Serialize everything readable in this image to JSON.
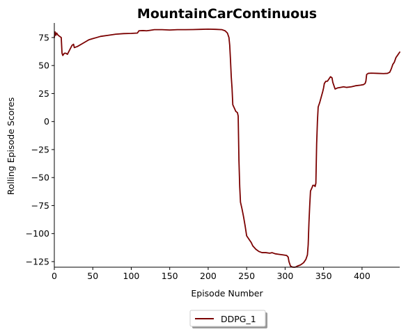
{
  "chart_data": {
    "type": "line",
    "title": "MountainCarContinuous",
    "xlabel": "Episode Number",
    "ylabel": "Rolling Episode Scores",
    "xlim": [
      0,
      449
    ],
    "ylim": [
      -130,
      88
    ],
    "xticks": [
      0,
      50,
      100,
      150,
      200,
      250,
      300,
      350,
      400
    ],
    "yticks": [
      -125,
      -100,
      -75,
      -50,
      -25,
      0,
      25,
      50,
      75
    ],
    "grid": false,
    "legend_position": "bottom-center",
    "series": [
      {
        "name": "DDPG_1",
        "color": "#7b0000",
        "points": [
          [
            0,
            75
          ],
          [
            1,
            80
          ],
          [
            2,
            77
          ],
          [
            3,
            79
          ],
          [
            5,
            77
          ],
          [
            7,
            76
          ],
          [
            9,
            75
          ],
          [
            10,
            61
          ],
          [
            11,
            59
          ],
          [
            13,
            61
          ],
          [
            15,
            61
          ],
          [
            17,
            60
          ],
          [
            20,
            64
          ],
          [
            23,
            68
          ],
          [
            25,
            69
          ],
          [
            26,
            66
          ],
          [
            30,
            67
          ],
          [
            35,
            69
          ],
          [
            40,
            71
          ],
          [
            45,
            73
          ],
          [
            50,
            74
          ],
          [
            55,
            75
          ],
          [
            60,
            76
          ],
          [
            70,
            77
          ],
          [
            80,
            78
          ],
          [
            90,
            78.5
          ],
          [
            100,
            78.7
          ],
          [
            108,
            79
          ],
          [
            110,
            81
          ],
          [
            115,
            81.2
          ],
          [
            120,
            81
          ],
          [
            125,
            81.5
          ],
          [
            130,
            82
          ],
          [
            135,
            82
          ],
          [
            140,
            82
          ],
          [
            150,
            81.7
          ],
          [
            160,
            82
          ],
          [
            170,
            82
          ],
          [
            180,
            82.1
          ],
          [
            190,
            82.3
          ],
          [
            200,
            82.5
          ],
          [
            210,
            82.3
          ],
          [
            218,
            82
          ],
          [
            222,
            81
          ],
          [
            225,
            79
          ],
          [
            227,
            75
          ],
          [
            228,
            68
          ],
          [
            229,
            55
          ],
          [
            230,
            40
          ],
          [
            231,
            30
          ],
          [
            232,
            15
          ],
          [
            234,
            12
          ],
          [
            236,
            9
          ],
          [
            238,
            8
          ],
          [
            239,
            5
          ],
          [
            240,
            -35
          ],
          [
            241,
            -58
          ],
          [
            242,
            -72
          ],
          [
            244,
            -78
          ],
          [
            246,
            -85
          ],
          [
            248,
            -93
          ],
          [
            250,
            -102
          ],
          [
            253,
            -105
          ],
          [
            256,
            -108
          ],
          [
            258,
            -111
          ],
          [
            262,
            -114
          ],
          [
            266,
            -116
          ],
          [
            270,
            -117
          ],
          [
            275,
            -117
          ],
          [
            280,
            -117.5
          ],
          [
            283,
            -117
          ],
          [
            287,
            -118
          ],
          [
            292,
            -118.5
          ],
          [
            297,
            -119
          ],
          [
            302,
            -119.5
          ],
          [
            304,
            -121
          ],
          [
            305,
            -125
          ],
          [
            307,
            -129
          ],
          [
            310,
            -130
          ],
          [
            313,
            -130
          ],
          [
            316,
            -129
          ],
          [
            320,
            -128
          ],
          [
            324,
            -126
          ],
          [
            327,
            -123
          ],
          [
            329,
            -119
          ],
          [
            330,
            -110
          ],
          [
            331,
            -90
          ],
          [
            332,
            -75
          ],
          [
            333,
            -62
          ],
          [
            335,
            -59
          ],
          [
            336,
            -57
          ],
          [
            338,
            -57
          ],
          [
            339,
            -58
          ],
          [
            340,
            -55
          ],
          [
            341,
            -20
          ],
          [
            342,
            0
          ],
          [
            343,
            13
          ],
          [
            345,
            17
          ],
          [
            347,
            22
          ],
          [
            349,
            27
          ],
          [
            350,
            30
          ],
          [
            351,
            34
          ],
          [
            353,
            36
          ],
          [
            355,
            36
          ],
          [
            357,
            38
          ],
          [
            359,
            40
          ],
          [
            361,
            39
          ],
          [
            362,
            35
          ],
          [
            363,
            33
          ],
          [
            365,
            29
          ],
          [
            368,
            30
          ],
          [
            372,
            30.5
          ],
          [
            376,
            31
          ],
          [
            380,
            30.5
          ],
          [
            386,
            31
          ],
          [
            392,
            32
          ],
          [
            398,
            32.5
          ],
          [
            402,
            33
          ],
          [
            404,
            34
          ],
          [
            405,
            36
          ],
          [
            406,
            42
          ],
          [
            408,
            43
          ],
          [
            412,
            43.2
          ],
          [
            420,
            43
          ],
          [
            428,
            42.8
          ],
          [
            433,
            43
          ],
          [
            436,
            44
          ],
          [
            438,
            47
          ],
          [
            440,
            51
          ],
          [
            442,
            53
          ],
          [
            444,
            57
          ],
          [
            446,
            59
          ],
          [
            448,
            61
          ],
          [
            449,
            62
          ]
        ]
      }
    ]
  }
}
